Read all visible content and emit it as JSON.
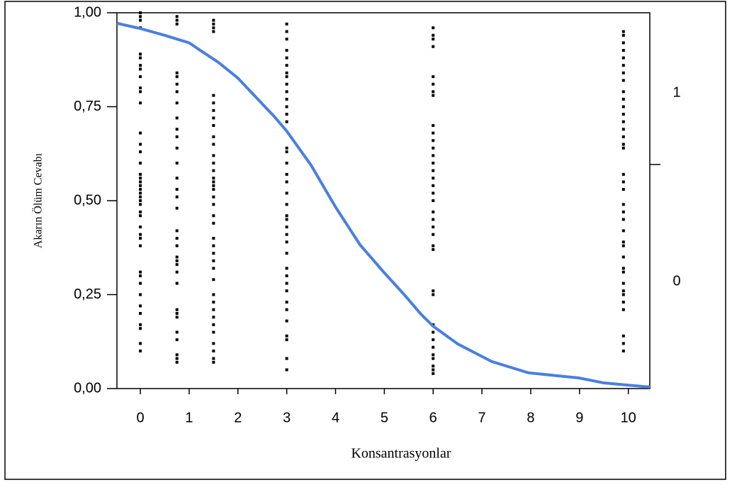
{
  "chart_data": {
    "type": "scatter",
    "xlabel": "Konsantrasyonlar",
    "ylabel": "Akarın Ölüm Cevabı",
    "right_labels": [
      "1",
      "0"
    ],
    "xlim": [
      -0.48,
      10.44
    ],
    "ylim": [
      0,
      1
    ],
    "xticks": [
      0,
      1,
      2,
      3,
      4,
      5,
      6,
      7,
      8,
      9,
      10
    ],
    "yticks": [
      {
        "value": 0,
        "label": "0,00"
      },
      {
        "value": 0.25,
        "label": "0,25"
      },
      {
        "value": 0.5,
        "label": "0,50"
      },
      {
        "value": 0.75,
        "label": "0,75"
      },
      {
        "value": 1,
        "label": "1,00"
      }
    ],
    "series": [
      {
        "type": "scatter",
        "color": "#000000",
        "x": [
          0,
          0,
          0,
          0,
          0,
          0,
          0,
          0,
          0,
          0,
          0,
          0,
          0,
          0,
          0,
          0,
          0,
          0,
          0,
          0,
          0,
          0,
          0,
          0,
          0,
          0,
          0,
          0,
          0,
          0,
          0,
          0,
          0,
          0,
          0,
          0,
          0,
          0,
          0,
          0,
          0
        ],
        "values": [
          1.0,
          0.99,
          0.98,
          0.96,
          0.89,
          0.88,
          0.86,
          0.85,
          0.83,
          0.8,
          0.79,
          0.76,
          0.68,
          0.65,
          0.63,
          0.6,
          0.57,
          0.56,
          0.55,
          0.54,
          0.53,
          0.52,
          0.51,
          0.5,
          0.49,
          0.47,
          0.46,
          0.43,
          0.41,
          0.4,
          0.38,
          0.31,
          0.3,
          0.28,
          0.25,
          0.22,
          0.2,
          0.17,
          0.16,
          0.12,
          0.1
        ]
      },
      {
        "type": "scatter",
        "color": "#000000",
        "x": [
          0.75,
          0.75,
          0.75,
          0.75,
          0.75,
          0.75,
          0.75,
          0.75,
          0.75,
          0.75,
          0.75,
          0.75,
          0.75,
          0.75,
          0.75,
          0.75,
          0.75,
          0.75,
          0.75,
          0.75,
          0.75,
          0.75,
          0.75,
          0.75,
          0.75,
          0.75,
          0.75,
          0.75,
          0.75,
          0.75,
          0.75,
          0.75,
          0.75
        ],
        "values": [
          0.99,
          0.98,
          0.97,
          0.84,
          0.83,
          0.81,
          0.79,
          0.76,
          0.72,
          0.69,
          0.67,
          0.64,
          0.6,
          0.56,
          0.53,
          0.51,
          0.48,
          0.42,
          0.4,
          0.38,
          0.35,
          0.34,
          0.33,
          0.31,
          0.28,
          0.21,
          0.2,
          0.19,
          0.15,
          0.13,
          0.09,
          0.08,
          0.07
        ]
      },
      {
        "type": "scatter",
        "color": "#000000",
        "x": [
          1.5,
          1.5,
          1.5,
          1.5,
          1.5,
          1.5,
          1.5,
          1.5,
          1.5,
          1.5,
          1.5,
          1.5,
          1.5,
          1.5,
          1.5,
          1.5,
          1.5,
          1.5,
          1.5,
          1.5,
          1.5,
          1.5,
          1.5,
          1.5,
          1.5,
          1.5,
          1.5,
          1.5,
          1.5,
          1.5,
          1.5,
          1.5,
          1.5,
          1.5,
          1.5,
          1.5,
          1.5,
          1.5
        ],
        "values": [
          0.98,
          0.97,
          0.96,
          0.95,
          0.78,
          0.76,
          0.74,
          0.72,
          0.7,
          0.67,
          0.65,
          0.62,
          0.6,
          0.58,
          0.56,
          0.55,
          0.54,
          0.53,
          0.51,
          0.49,
          0.46,
          0.44,
          0.4,
          0.38,
          0.36,
          0.34,
          0.32,
          0.29,
          0.25,
          0.23,
          0.21,
          0.19,
          0.17,
          0.15,
          0.12,
          0.1,
          0.08,
          0.07
        ]
      },
      {
        "type": "scatter",
        "color": "#000000",
        "x": [
          3,
          3,
          3,
          3,
          3,
          3,
          3,
          3,
          3,
          3,
          3,
          3,
          3,
          3,
          3,
          3,
          3,
          3,
          3,
          3,
          3,
          3,
          3,
          3,
          3,
          3,
          3,
          3,
          3,
          3,
          3,
          3,
          3,
          3,
          3,
          3,
          3,
          3
        ],
        "values": [
          0.97,
          0.95,
          0.93,
          0.9,
          0.88,
          0.86,
          0.84,
          0.83,
          0.81,
          0.79,
          0.77,
          0.75,
          0.73,
          0.71,
          0.64,
          0.63,
          0.6,
          0.57,
          0.55,
          0.52,
          0.49,
          0.46,
          0.45,
          0.43,
          0.41,
          0.39,
          0.36,
          0.32,
          0.3,
          0.28,
          0.26,
          0.23,
          0.21,
          0.18,
          0.14,
          0.13,
          0.08,
          0.05
        ]
      },
      {
        "type": "scatter",
        "color": "#000000",
        "x": [
          6,
          6,
          6,
          6,
          6,
          6,
          6,
          6,
          6,
          6,
          6,
          6,
          6,
          6,
          6,
          6,
          6,
          6,
          6,
          6,
          6,
          6,
          6,
          6,
          6,
          6,
          6,
          6,
          6,
          6,
          6,
          6,
          6,
          6,
          6,
          6
        ],
        "values": [
          0.96,
          0.94,
          0.93,
          0.91,
          0.83,
          0.81,
          0.79,
          0.78,
          0.7,
          0.68,
          0.66,
          0.64,
          0.62,
          0.6,
          0.58,
          0.56,
          0.54,
          0.52,
          0.5,
          0.47,
          0.45,
          0.43,
          0.41,
          0.38,
          0.37,
          0.26,
          0.25,
          0.17,
          0.15,
          0.13,
          0.11,
          0.09,
          0.08,
          0.06,
          0.05,
          0.04
        ]
      },
      {
        "type": "scatter",
        "color": "#000000",
        "x": [
          9.9,
          9.9,
          9.9,
          9.9,
          9.9,
          9.9,
          9.9,
          9.9,
          9.9,
          9.9,
          9.9,
          9.9,
          9.9,
          9.9,
          9.9,
          9.9,
          9.9,
          9.9,
          9.9,
          9.9,
          9.9,
          9.9,
          9.9,
          9.9,
          9.9,
          9.9,
          9.9,
          9.9,
          9.9,
          9.9,
          9.9,
          9.9,
          9.9,
          9.9,
          9.9,
          9.9,
          9.9
        ],
        "values": [
          0.95,
          0.94,
          0.92,
          0.9,
          0.88,
          0.86,
          0.84,
          0.82,
          0.79,
          0.77,
          0.75,
          0.73,
          0.71,
          0.69,
          0.67,
          0.65,
          0.64,
          0.57,
          0.55,
          0.53,
          0.49,
          0.47,
          0.45,
          0.42,
          0.39,
          0.38,
          0.35,
          0.32,
          0.31,
          0.28,
          0.26,
          0.25,
          0.23,
          0.21,
          0.14,
          0.12,
          0.1
        ]
      },
      {
        "type": "line",
        "color": "#4a7fe0",
        "x": [
          -0.48,
          0,
          0.5,
          1,
          1.25,
          1.6,
          2,
          2.75,
          3,
          3.5,
          4,
          4.5,
          5,
          5.4,
          5.75,
          6,
          6.5,
          7.2,
          7.95,
          9,
          9.5,
          10.44
        ],
        "values": [
          0.972,
          0.958,
          0.94,
          0.92,
          0.898,
          0.868,
          0.826,
          0.723,
          0.685,
          0.594,
          0.483,
          0.383,
          0.308,
          0.251,
          0.198,
          0.166,
          0.119,
          0.072,
          0.042,
          0.028,
          0.015,
          0.004
        ]
      }
    ]
  }
}
